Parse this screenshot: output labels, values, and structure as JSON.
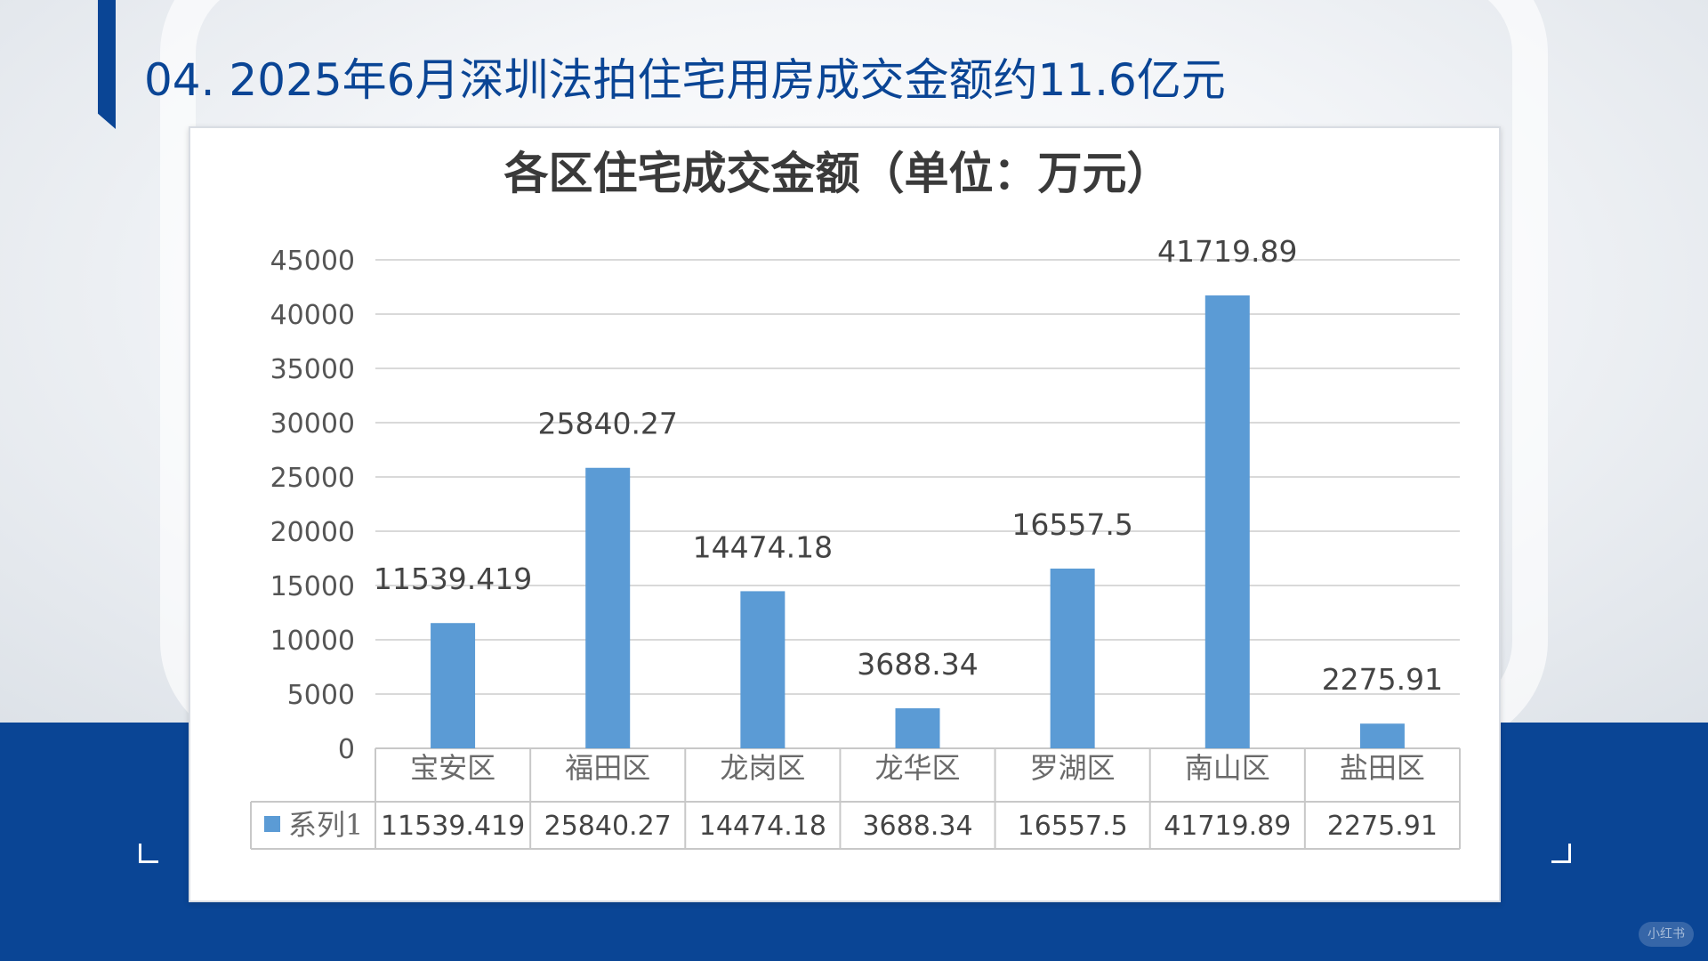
{
  "page": {
    "title": "04. 2025年6月深圳法拍住宅用房成交金额约11.6亿元",
    "watermark": "小红书"
  },
  "colors": {
    "brand_blue": "#0a4595",
    "bar_blue": "#5b9bd5"
  },
  "chart_data": {
    "type": "bar",
    "title": "各区住宅成交金额（单位：万元）",
    "categories": [
      "宝安区",
      "福田区",
      "龙岗区",
      "龙华区",
      "罗湖区",
      "南山区",
      "盐田区"
    ],
    "series": [
      {
        "name": "系列1",
        "values": [
          11539.419,
          25840.27,
          14474.18,
          3688.34,
          16557.5,
          41719.89,
          2275.91
        ],
        "labels": [
          "11539.419",
          "25840.27",
          "14474.18",
          "3688.34",
          "16557.5",
          "41719.89",
          "2275.91"
        ]
      }
    ],
    "ylim": [
      0,
      45000
    ],
    "yticks": [
      0,
      5000,
      10000,
      15000,
      20000,
      25000,
      30000,
      35000,
      40000,
      45000
    ],
    "grid": true,
    "data_table": true
  }
}
